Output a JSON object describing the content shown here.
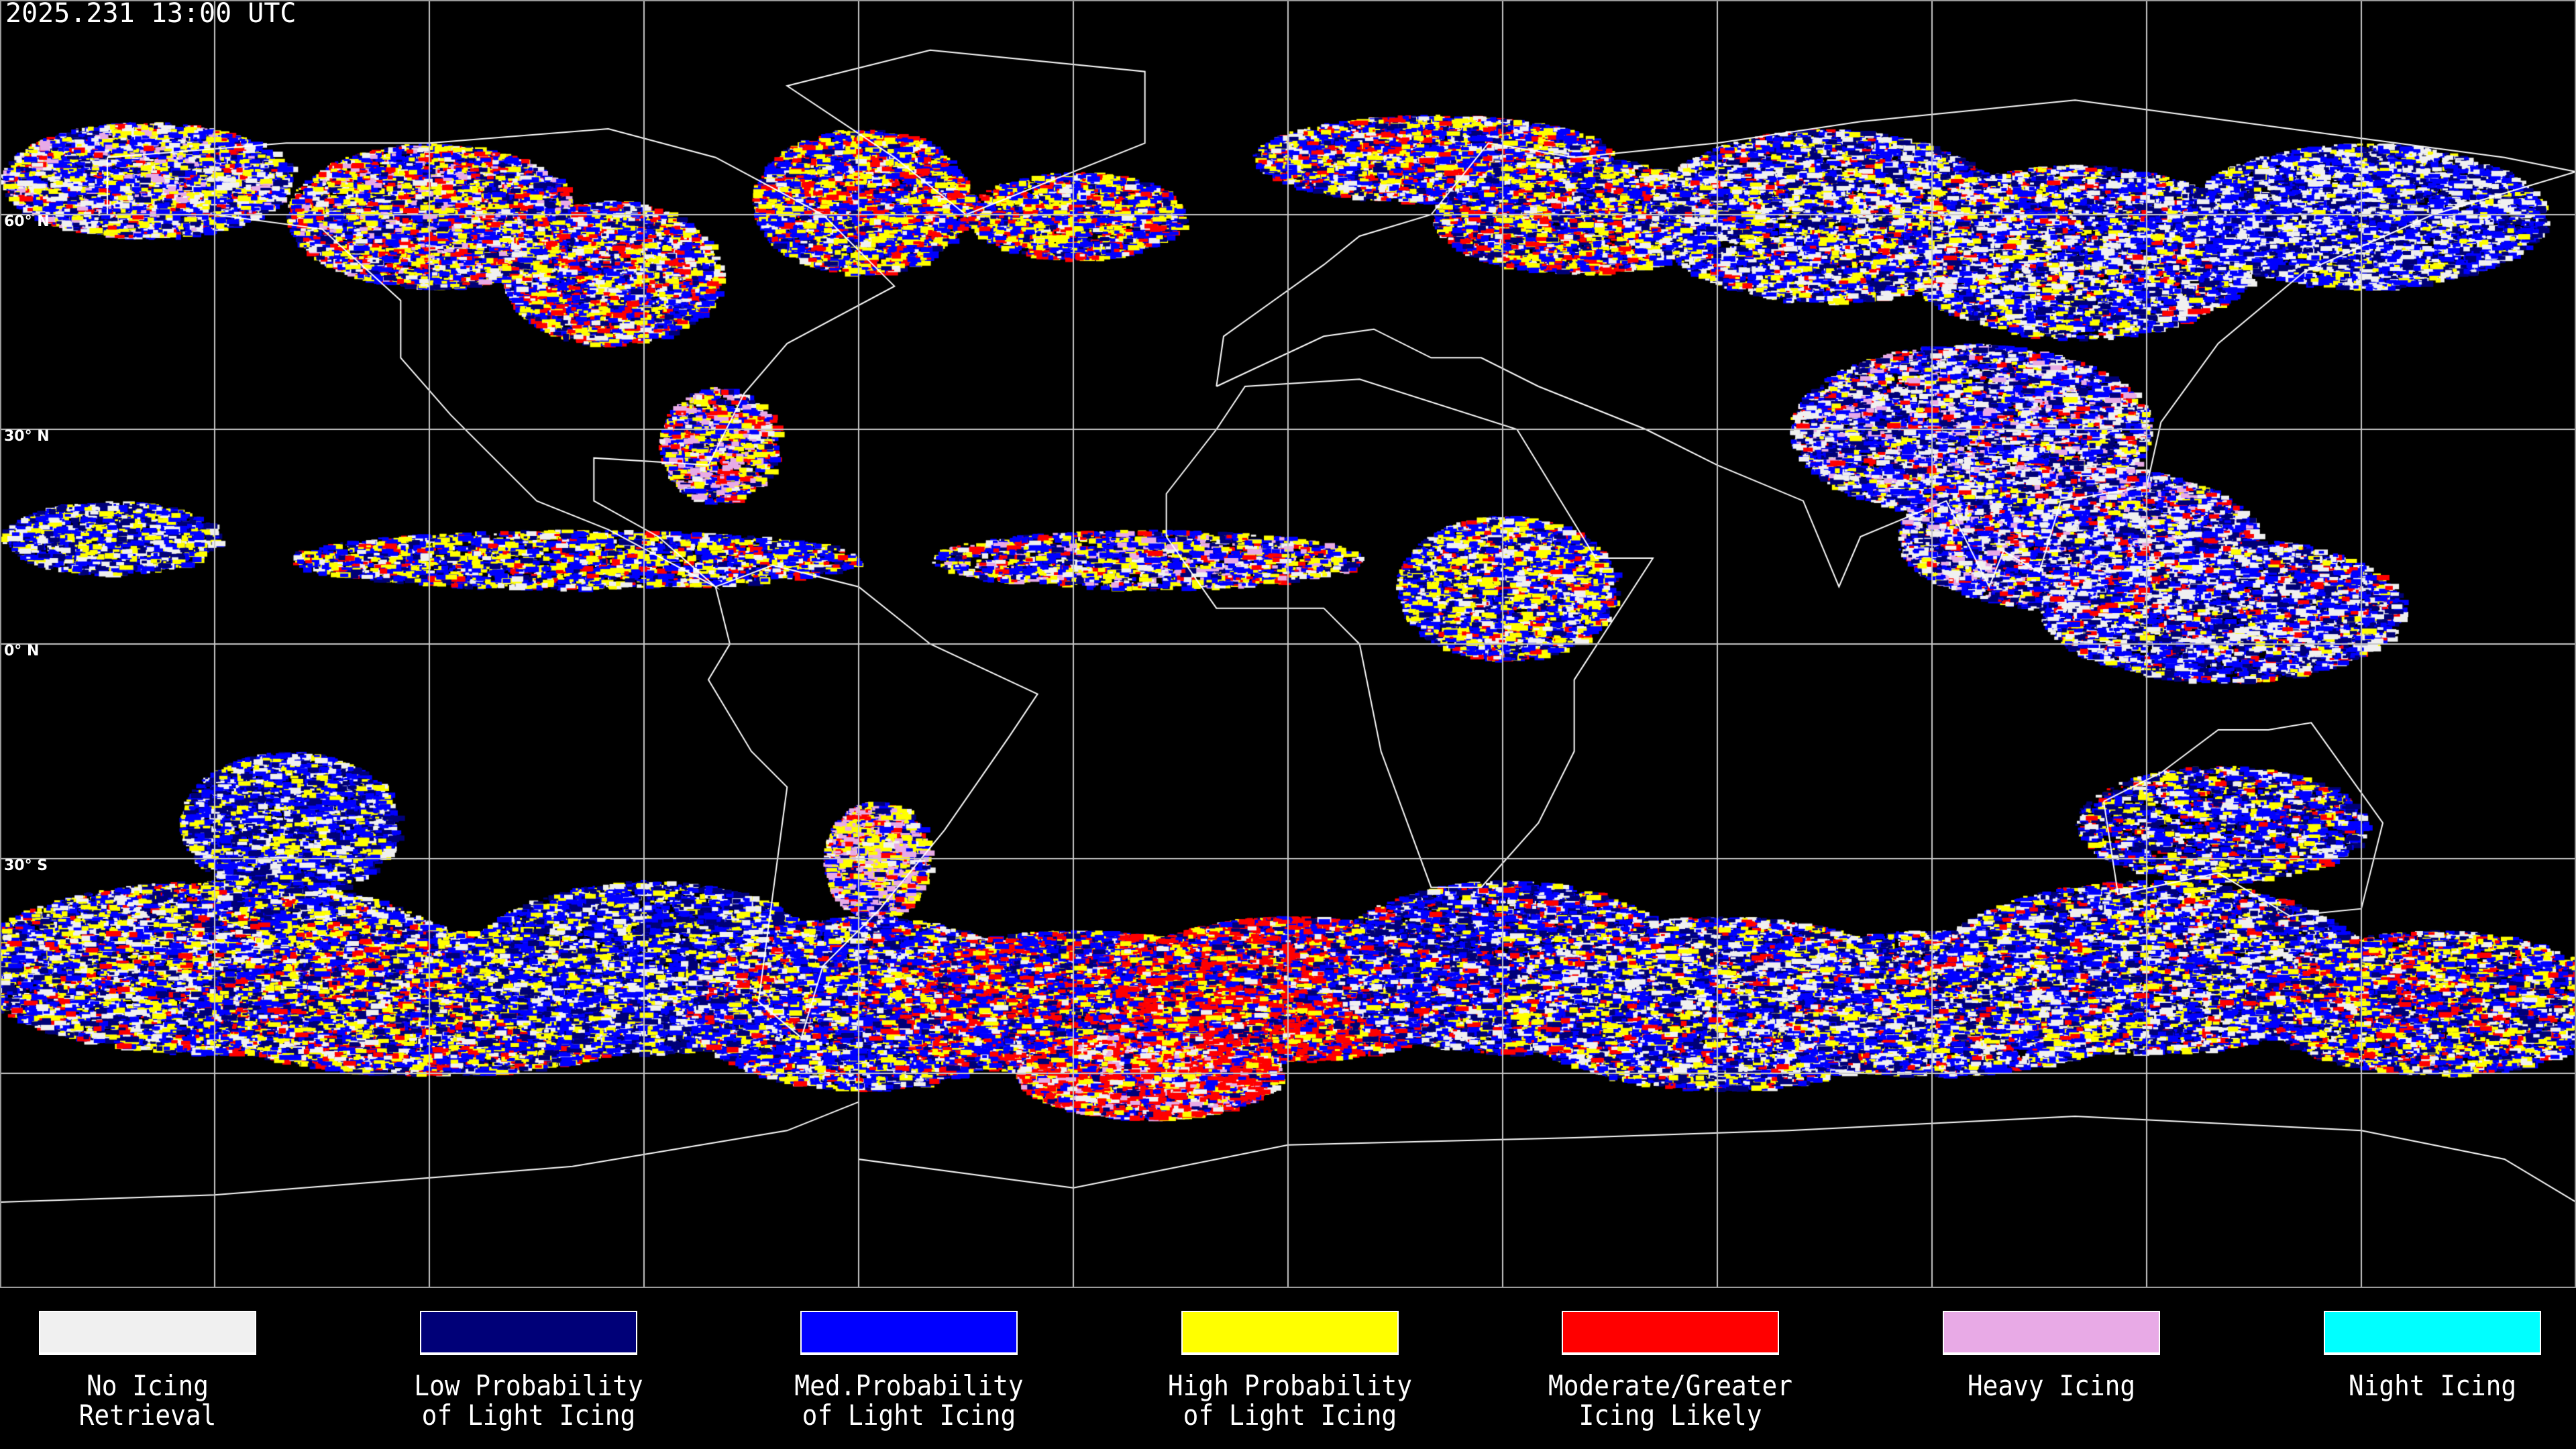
{
  "header": {
    "timestamp": "2025.231 13:00 UTC"
  },
  "map": {
    "projection": "equirectangular",
    "lon_range": [
      -180,
      180
    ],
    "lat_range": [
      -90,
      90
    ],
    "grid_spacing_deg": 30,
    "lat_labels": [
      {
        "lat": 60,
        "text": "60° N"
      },
      {
        "lat": 30,
        "text": "30° N"
      },
      {
        "lat": 0,
        "text": "0° N"
      },
      {
        "lat": -30,
        "text": "30° S"
      }
    ],
    "colors": {
      "background": "#000000",
      "grid": "#c8c8c8",
      "coastline": "#ffffff"
    }
  },
  "legend": [
    {
      "line1": "No Icing",
      "line2": "Retrieval",
      "color": "#f0f0f0"
    },
    {
      "line1": "Low Probability",
      "line2": "of Light Icing",
      "color": "#000078"
    },
    {
      "line1": "Med.Probability",
      "line2": "of Light Icing",
      "color": "#0000ff"
    },
    {
      "line1": "High Probability",
      "line2": "of Light Icing",
      "color": "#ffff00"
    },
    {
      "line1": "Moderate/Greater",
      "line2": "Icing Likely",
      "color": "#ff0000"
    },
    {
      "line1": "Heavy Icing",
      "line2": "",
      "color": "#e8aae6"
    },
    {
      "line1": "Night Icing",
      "line2": "",
      "color": "#00ffff"
    }
  ]
}
